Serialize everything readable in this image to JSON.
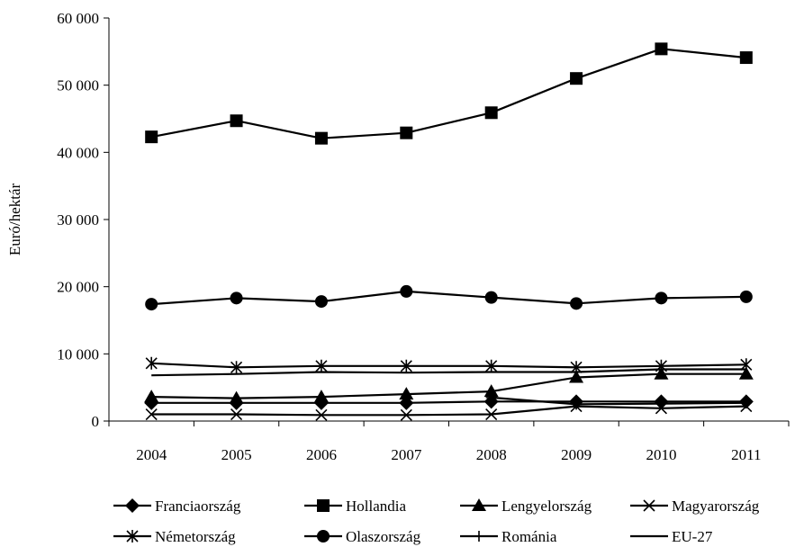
{
  "chart_data": {
    "type": "line",
    "title": "",
    "xlabel": "",
    "ylabel": "Euró/hektár",
    "x": [
      "2004",
      "2005",
      "2006",
      "2007",
      "2008",
      "2009",
      "2010",
      "2011"
    ],
    "ylim": [
      0,
      60000
    ],
    "yticks": [
      0,
      10000,
      20000,
      30000,
      40000,
      50000,
      60000
    ],
    "ytick_labels": [
      "0",
      "10 000",
      "20 000",
      "30 000",
      "40 000",
      "50 000",
      "60 000"
    ],
    "grid": false,
    "legend_position": "bottom",
    "series": [
      {
        "name": "Franciaország",
        "marker": "diamond",
        "values": [
          2700,
          2700,
          2700,
          2700,
          2900,
          2900,
          2900,
          2900
        ]
      },
      {
        "name": "Hollandia",
        "marker": "square",
        "values": [
          42300,
          44700,
          42100,
          42900,
          45900,
          51000,
          55400,
          54100
        ]
      },
      {
        "name": "Lengyelország",
        "marker": "triangle",
        "values": [
          3600,
          3400,
          3600,
          4000,
          4400,
          6500,
          7000,
          7000
        ]
      },
      {
        "name": "Magyarország",
        "marker": "x",
        "values": [
          1000,
          1000,
          900,
          900,
          1000,
          2200,
          1900,
          2200
        ]
      },
      {
        "name": "Németország",
        "marker": "star",
        "values": [
          8600,
          8000,
          8200,
          8200,
          8200,
          8000,
          8200,
          8400
        ]
      },
      {
        "name": "Olaszország",
        "marker": "circle",
        "values": [
          17400,
          18300,
          17800,
          19300,
          18400,
          17500,
          18300,
          18500
        ]
      },
      {
        "name": "Románia",
        "marker": "plus",
        "values": [
          null,
          null,
          null,
          null,
          3500,
          2500,
          2600,
          2700
        ]
      },
      {
        "name": "EU-27",
        "marker": "dash",
        "values": [
          6800,
          7000,
          7300,
          7200,
          7300,
          7300,
          7700,
          7700
        ]
      }
    ],
    "line_color": "#000000"
  }
}
